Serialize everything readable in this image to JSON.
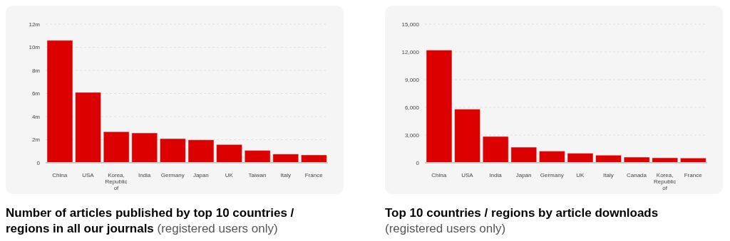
{
  "chart_data": [
    {
      "type": "bar",
      "title": "Number of articles published by top 10 countries / regions in all our journals",
      "subtitle": "(registered users only)",
      "categories": [
        "China",
        "USA",
        "Korea, Republic of",
        "India",
        "Germany",
        "Japan",
        "UK",
        "Taiwan",
        "Italy",
        "France"
      ],
      "values": [
        10.6,
        6.1,
        2.69,
        2.58,
        2.09,
        1.99,
        1.58,
        1.07,
        0.76,
        0.68
      ],
      "color": "#dd0000",
      "ylim": [
        0,
        12
      ],
      "yticks": [
        0,
        {
          "value": 2,
          "label": "2m"
        },
        {
          "value": 4,
          "label": "4m"
        },
        {
          "value": 6,
          "label": "6m"
        },
        {
          "value": 8,
          "label": "8m"
        },
        {
          "value": 10,
          "label": "10m"
        },
        {
          "value": 12,
          "label": "12m"
        }
      ],
      "grid": "y",
      "legend": false
    },
    {
      "type": "bar",
      "title": "Top 10 countries / regions by article downloads",
      "subtitle": "(registered users only)",
      "categories": [
        "China",
        "USA",
        "India",
        "Japan",
        "Germany",
        "UK",
        "Italy",
        "Canada",
        "Korea, Republic of",
        "France"
      ],
      "values": [
        12200,
        5800,
        2850,
        1690,
        1260,
        1030,
        820,
        615,
        540,
        510
      ],
      "color": "#dd0000",
      "ylim": [
        0,
        15000
      ],
      "yticks": [
        0,
        {
          "value": 3000,
          "label": "3,000"
        },
        {
          "value": 6000,
          "label": "6,000"
        },
        {
          "value": 9000,
          "label": "9,000"
        },
        {
          "value": 12000,
          "label": "12,000"
        },
        {
          "value": 15000,
          "label": "15,000"
        }
      ],
      "grid": "y",
      "legend": false
    }
  ]
}
